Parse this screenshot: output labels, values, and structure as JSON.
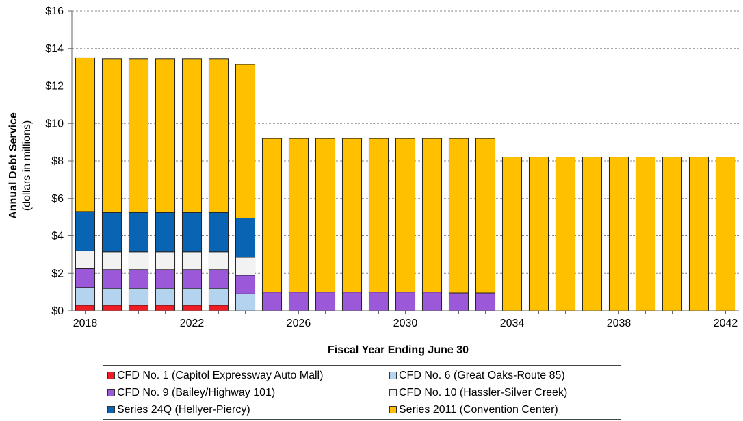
{
  "chart_data": {
    "type": "bar",
    "stacked": true,
    "xlabel": "Fiscal Year Ending June 30",
    "ylabel": "Annual Debt Service",
    "ylabel_sub": "(dollars in millions)",
    "ylim": [
      0,
      16
    ],
    "yticks": [
      0,
      2,
      4,
      6,
      8,
      10,
      12,
      14,
      16
    ],
    "ytick_labels": [
      "$0",
      "$2",
      "$4",
      "$6",
      "$8",
      "$10",
      "$12",
      "$14",
      "$16"
    ],
    "x_tick_labels": [
      "2018",
      "2022",
      "2026",
      "2030",
      "2034",
      "2038",
      "2042"
    ],
    "grid": true,
    "legend_position": "bottom",
    "categories": [
      2018,
      2019,
      2020,
      2021,
      2022,
      2023,
      2024,
      2025,
      2026,
      2027,
      2028,
      2029,
      2030,
      2031,
      2032,
      2033,
      2034,
      2035,
      2036,
      2037,
      2038,
      2039,
      2040,
      2041,
      2042
    ],
    "series": [
      {
        "name": "CFD No. 1 (Capitol Expressway Auto Mall)",
        "color": "#ee1c24",
        "values": [
          0.3,
          0.3,
          0.3,
          0.3,
          0.3,
          0.3,
          0,
          0,
          0,
          0,
          0,
          0,
          0,
          0,
          0,
          0,
          0,
          0,
          0,
          0,
          0,
          0,
          0,
          0,
          0
        ]
      },
      {
        "name": "CFD No. 6 (Great Oaks-Route 85)",
        "color": "#b4d3ee",
        "values": [
          0.95,
          0.9,
          0.9,
          0.9,
          0.9,
          0.9,
          0.9,
          0,
          0,
          0,
          0,
          0,
          0,
          0,
          0,
          0,
          0,
          0,
          0,
          0,
          0,
          0,
          0,
          0,
          0
        ]
      },
      {
        "name": "CFD No. 9 (Bailey/Highway 101)",
        "color": "#9b59d9",
        "values": [
          1.0,
          1.0,
          1.0,
          1.0,
          1.0,
          1.0,
          1.0,
          1.0,
          1.0,
          1.0,
          1.0,
          1.0,
          1.0,
          1.0,
          0.95,
          0.95,
          0,
          0,
          0,
          0,
          0,
          0,
          0,
          0,
          0
        ]
      },
      {
        "name": "CFD No. 10 (Hassler-Silver Creek)",
        "color": "#f2f2f2",
        "values": [
          0.95,
          0.95,
          0.95,
          0.95,
          0.95,
          0.95,
          0.95,
          0,
          0,
          0,
          0,
          0,
          0,
          0,
          0,
          0,
          0,
          0,
          0,
          0,
          0,
          0,
          0,
          0,
          0
        ]
      },
      {
        "name": "Series 24Q (Hellyer-Piercy)",
        "color": "#0a64b4",
        "values": [
          2.1,
          2.1,
          2.1,
          2.1,
          2.1,
          2.1,
          2.1,
          0,
          0,
          0,
          0,
          0,
          0,
          0,
          0,
          0,
          0,
          0,
          0,
          0,
          0,
          0,
          0,
          0,
          0
        ]
      },
      {
        "name": "Series 2011 (Convention Center)",
        "color": "#ffc000",
        "values": [
          8.2,
          8.2,
          8.2,
          8.2,
          8.2,
          8.2,
          8.2,
          8.2,
          8.2,
          8.2,
          8.2,
          8.2,
          8.2,
          8.2,
          8.25,
          8.25,
          8.2,
          8.2,
          8.2,
          8.2,
          8.2,
          8.2,
          8.2,
          8.2,
          8.2
        ]
      }
    ],
    "legend_order": [
      0,
      1,
      2,
      3,
      4,
      5
    ]
  }
}
